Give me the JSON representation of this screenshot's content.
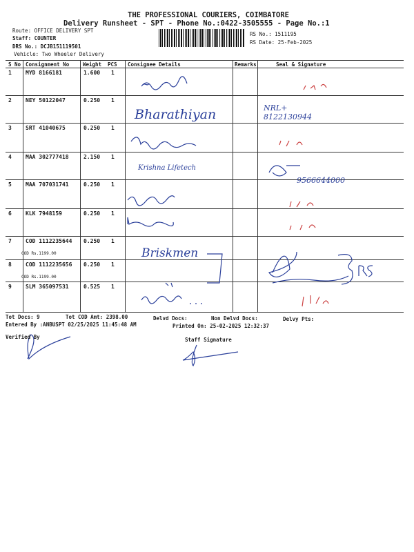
{
  "header": {
    "company": "THE PROFESSIONAL COURIERS, COIMBATORE",
    "subtitle": "Delivery Runsheet - SPT - Phone No.:0422-3505555 - Page No.:1",
    "route": "Route: OFFICE DELIVERY SPT",
    "staff": "Staff: COUNTER",
    "drs": "DRS No.: DCJB151119501",
    "vehicle": "Vehicle: Two Wheeler Delivery",
    "rs_no": "RS No.: 1511195",
    "rs_date": "RS Date: 25-Feb-2025"
  },
  "table": {
    "columns": [
      "S No",
      "Consignment No",
      "Weight",
      "PCS",
      "Consignee Details",
      "Remarks",
      "Seal & Signature"
    ],
    "rows": [
      {
        "sno": "1",
        "consignment": "MYD 8166181",
        "weight": "1.600",
        "pcs": "1",
        "cod": ""
      },
      {
        "sno": "2",
        "consignment": "NEY 50122047",
        "weight": "0.250",
        "pcs": "1",
        "cod": ""
      },
      {
        "sno": "3",
        "consignment": "SRT 41040675",
        "weight": "0.250",
        "pcs": "1",
        "cod": ""
      },
      {
        "sno": "4",
        "consignment": "MAA 302777418",
        "weight": "2.150",
        "pcs": "1",
        "cod": ""
      },
      {
        "sno": "5",
        "consignment": "MAA 707031741",
        "weight": "0.250",
        "pcs": "1",
        "cod": ""
      },
      {
        "sno": "6",
        "consignment": "KLK 7948159",
        "weight": "0.250",
        "pcs": "1",
        "cod": ""
      },
      {
        "sno": "7",
        "consignment": "COD 1112235644",
        "weight": "0.250",
        "pcs": "1",
        "cod": "COD Rs.1199.00"
      },
      {
        "sno": "8",
        "consignment": "COD 1112235656",
        "weight": "0.250",
        "pcs": "1",
        "cod": "COD Rs.1199.00"
      },
      {
        "sno": "9",
        "consignment": "SLM 365097531",
        "weight": "0.525",
        "pcs": "1",
        "cod": ""
      }
    ]
  },
  "handwriting": {
    "row2_consignee": "Bharathiyan",
    "row2_seal": "NRL+ 8122130944",
    "row4_consignee": "Krishna Lifetech",
    "row4_seal": "9566644000",
    "row7_consignee": "Briskmen"
  },
  "footer": {
    "tot_docs": "Tot Docs:   9",
    "tot_cod": "Tot COD Amt: 2398.00",
    "delvd": "Delvd Docs:",
    "non_delvd": "Non Delvd Docs:",
    "delvy_pts": "Delvy Pts:",
    "entered_by": "Entered By :ANBUSPT 02/25/2025 11:45:48 AM",
    "printed_on": "Printed On: 25-02-2025 12:32:37",
    "verified_by": "Verified By",
    "staff_signature": "Staff Signature"
  },
  "colors": {
    "ink": "#2a3f9a",
    "print": "#1a1a1a"
  }
}
